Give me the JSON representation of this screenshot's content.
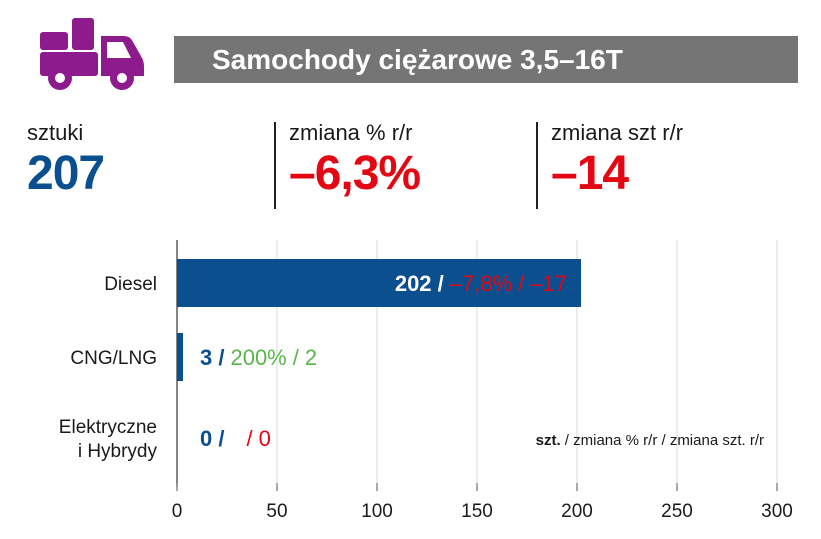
{
  "header": {
    "title": "Samochody ciężarowe 3,5–16T",
    "icon": "delivery-truck-icon",
    "icon_color": "#8e1b8e",
    "bar_color": "#757575"
  },
  "kpis": [
    {
      "label": "sztuki",
      "value": "207",
      "color": "#0b4f8f"
    },
    {
      "label": "zmiana % r/r",
      "value": "–6,3%",
      "color": "#e30613"
    },
    {
      "label": "zmiana szt r/r",
      "value": "–14",
      "color": "#e30613"
    }
  ],
  "chart_data": {
    "type": "bar",
    "orientation": "horizontal",
    "categories": [
      "Diesel",
      "CNG/LNG",
      "Elektryczne i Hybrydy"
    ],
    "category_lines": [
      [
        "Diesel"
      ],
      [
        "CNG/LNG"
      ],
      [
        "Elektryczne",
        "i Hybrydy"
      ]
    ],
    "values": [
      202,
      3,
      0
    ],
    "xlim": [
      0,
      300
    ],
    "xticks": [
      0,
      50,
      100,
      150,
      200,
      250,
      300
    ],
    "grid": true,
    "bar_color": "#0b4f8f",
    "data_labels": [
      {
        "count": "202 /",
        "pct": "–7,8%",
        "sep": "/",
        "change": "–17",
        "count_color": "#ffffff",
        "change_color": "#e30613",
        "inside": true
      },
      {
        "count": "3 /",
        "pct": "200%",
        "sep": "/",
        "change": "2",
        "count_color": "#0b4f8f",
        "change_color": "#5ab54a",
        "inside": false
      },
      {
        "count": "0 /",
        "pct": "",
        "sep": "/",
        "change": "0",
        "count_color": "#0b4f8f",
        "change_color": "#e30613",
        "inside": false
      }
    ],
    "legend_note": {
      "bold": "szt.",
      "rest": " / zmiana % r/r / zmiana szt. r/r"
    }
  }
}
